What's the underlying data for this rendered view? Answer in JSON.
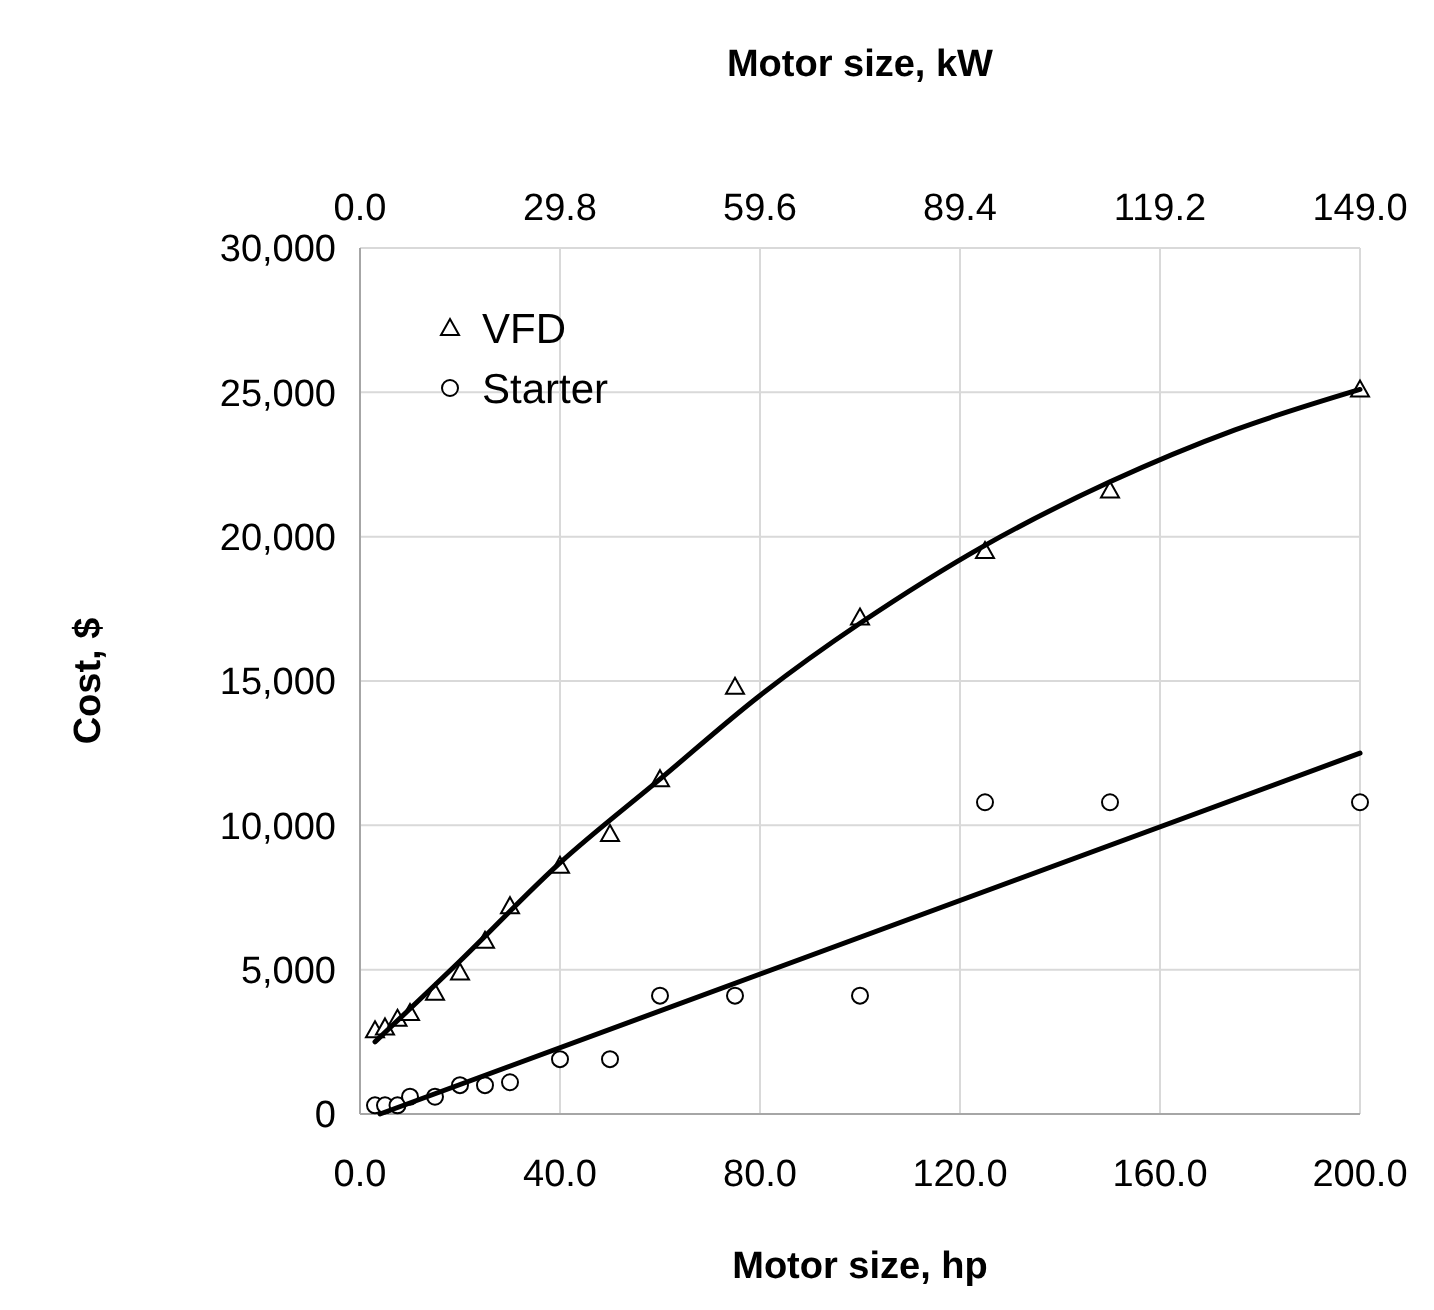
{
  "chart_data": {
    "type": "scatter",
    "xlabel": "Motor size, hp",
    "x2label": "Motor size, kW",
    "ylabel": "Cost, $",
    "xlim": [
      0,
      200
    ],
    "xticks": [
      {
        "value": 0,
        "label": "0.0"
      },
      {
        "value": 40,
        "label": "40.0"
      },
      {
        "value": 80,
        "label": "80.0"
      },
      {
        "value": 120,
        "label": "120.0"
      },
      {
        "value": 160,
        "label": "160.0"
      },
      {
        "value": 200,
        "label": "200.0"
      }
    ],
    "x2lim": [
      0,
      149
    ],
    "x2ticks": [
      {
        "value": 0,
        "label": "0.0"
      },
      {
        "value": 29.8,
        "label": "29.8"
      },
      {
        "value": 59.6,
        "label": "59.6"
      },
      {
        "value": 89.4,
        "label": "89.4"
      },
      {
        "value": 119.2,
        "label": "119.2"
      },
      {
        "value": 149,
        "label": "149.0"
      }
    ],
    "ylim": [
      0,
      30000
    ],
    "yticks": [
      {
        "value": 0,
        "label": "0"
      },
      {
        "value": 5000,
        "label": "5,000"
      },
      {
        "value": 10000,
        "label": "10,000"
      },
      {
        "value": 15000,
        "label": "15,000"
      },
      {
        "value": 20000,
        "label": "20,000"
      },
      {
        "value": 25000,
        "label": "25,000"
      },
      {
        "value": 30000,
        "label": "30,000"
      }
    ],
    "grid": true,
    "legend": "top left",
    "series": [
      {
        "name": "VFD",
        "color": "#000000",
        "marker": "triangle",
        "x": [
          3,
          5,
          7.5,
          10,
          15,
          20,
          25,
          30,
          40,
          50,
          60,
          75,
          100,
          125,
          150,
          200
        ],
        "values": [
          2900,
          3000,
          3300,
          3500,
          4200,
          4900,
          6000,
          7200,
          8600,
          9700,
          11600,
          14800,
          17200,
          19500,
          21600,
          25100
        ]
      },
      {
        "name": "Starter",
        "color": "#000000",
        "marker": "circle",
        "x": [
          3,
          5,
          7.5,
          10,
          15,
          20,
          25,
          30,
          40,
          50,
          60,
          75,
          100,
          125,
          150,
          200
        ],
        "values": [
          300,
          300,
          300,
          600,
          600,
          1000,
          1000,
          1100,
          1900,
          1900,
          4100,
          4100,
          4100,
          10800,
          10800,
          10800
        ]
      },
      {
        "type": "line",
        "color": "#000000",
        "marker": "none",
        "x": [
          3,
          20,
          40,
          60,
          80,
          100,
          125,
          150,
          175,
          200
        ],
        "values": [
          2500,
          5300,
          8700,
          11600,
          14500,
          17000,
          19700,
          21900,
          23700,
          25100
        ]
      },
      {
        "type": "line",
        "color": "#000000",
        "marker": "none",
        "x": [
          4,
          200
        ],
        "values": [
          0,
          12500
        ]
      }
    ]
  }
}
